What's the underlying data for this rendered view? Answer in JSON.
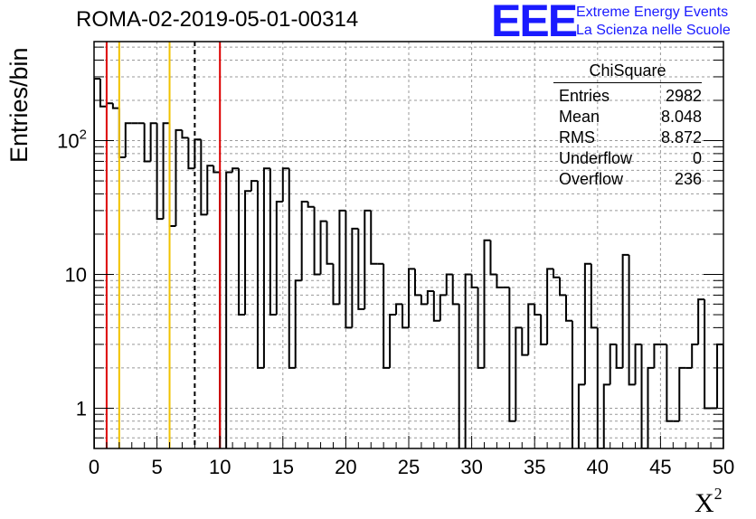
{
  "header": {
    "title": "ROMA-02-2019-05-01-00314",
    "logo_text": "EEE",
    "logo_line1": "Extreme Energy Events",
    "logo_line2": "La Scienza nelle Scuole"
  },
  "stats": {
    "title": "ChiSquare",
    "rows": [
      {
        "label": "Entries",
        "value": "2982"
      },
      {
        "label": "Mean",
        "value": "8.048"
      },
      {
        "label": "RMS",
        "value": "8.872"
      },
      {
        "label": "Underflow",
        "value": "0"
      },
      {
        "label": "Overflow",
        "value": "236"
      }
    ]
  },
  "chart_data": {
    "type": "bar",
    "ylabel": "Entries/bin",
    "xlabel": "X",
    "xlabel_sup": "2",
    "xlim": [
      0,
      50
    ],
    "ylim": [
      0.5,
      550
    ],
    "yscale": "log",
    "grid": true,
    "bin_width": 0.5,
    "x_ticks": [
      "0",
      "5",
      "10",
      "15",
      "20",
      "25",
      "30",
      "35",
      "40",
      "45",
      "50"
    ],
    "y_ticks": [
      {
        "value": 1,
        "label": "1",
        "sup": ""
      },
      {
        "value": 10,
        "label": "10",
        "sup": ""
      },
      {
        "value": 100,
        "label": "10",
        "sup": "2"
      }
    ],
    "values": [
      290,
      180,
      190,
      175,
      75,
      135,
      135,
      135,
      70,
      135,
      26,
      135,
      23,
      120,
      105,
      62,
      102,
      28,
      65,
      58,
      0,
      58,
      62,
      5,
      42,
      50,
      2,
      62,
      5,
      35,
      62,
      2,
      9,
      35,
      32,
      10,
      25,
      12,
      6,
      30,
      4,
      22,
      5.5,
      30,
      12,
      12,
      2,
      5,
      6,
      4,
      11,
      7,
      6,
      7.5,
      4.5,
      7,
      10,
      6,
      0,
      10,
      8,
      2,
      18,
      10,
      8,
      8,
      0.8,
      4,
      2.5,
      6,
      5,
      3,
      11,
      9.5,
      7,
      4.5,
      0,
      1.5,
      12,
      4,
      0.5,
      1.5,
      3,
      2,
      14,
      1.5,
      3,
      0.5,
      2,
      3,
      3,
      0.8,
      0.8,
      2,
      2,
      3,
      6.5,
      1,
      1,
      3
    ],
    "vlines": [
      {
        "x": 1,
        "color": "#dd0000",
        "style": "solid"
      },
      {
        "x": 2,
        "color": "#f2c200",
        "style": "solid"
      },
      {
        "x": 6,
        "color": "#f2c200",
        "style": "solid"
      },
      {
        "x": 8,
        "color": "#000000",
        "style": "dashed"
      },
      {
        "x": 10,
        "color": "#dd0000",
        "style": "solid"
      }
    ]
  }
}
